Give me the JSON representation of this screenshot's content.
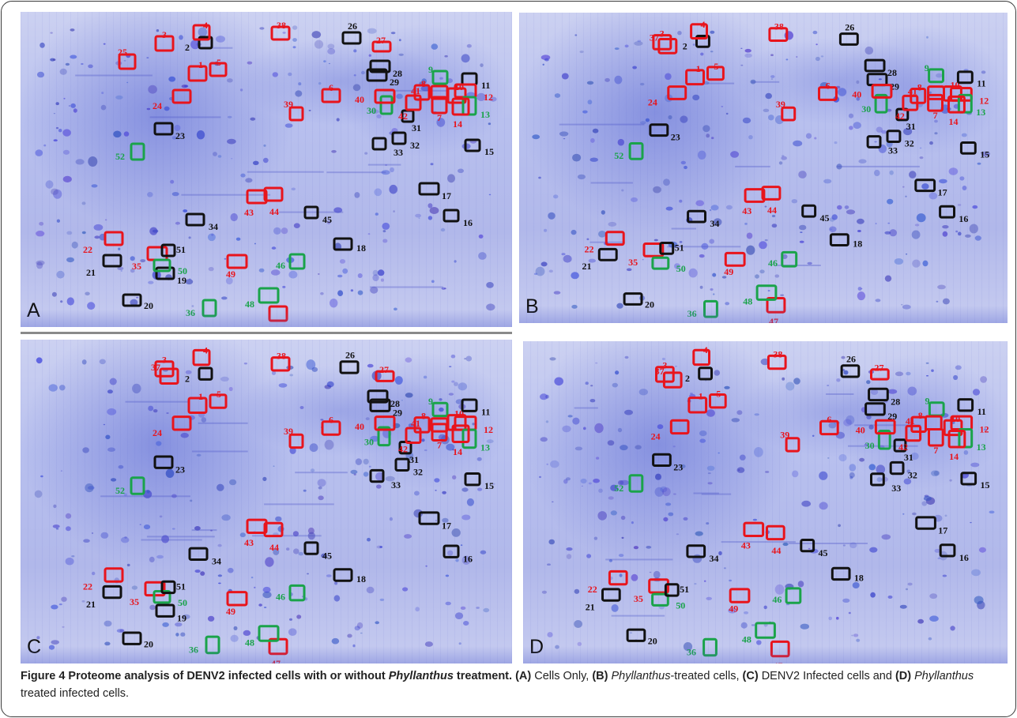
{
  "colors": {
    "red": "#e8141c",
    "black": "#111111",
    "green": "#1aa34a"
  },
  "panels": [
    {
      "letter": "A",
      "spots": [
        {
          "n": "1",
          "c": "red"
        },
        {
          "n": "2",
          "c": "black"
        },
        {
          "n": "3",
          "c": "red"
        },
        {
          "n": "4",
          "c": "red"
        },
        {
          "n": "5",
          "c": "red"
        },
        {
          "n": "6",
          "c": "red"
        },
        {
          "n": "7",
          "c": "red"
        },
        {
          "n": "8",
          "c": "red"
        },
        {
          "n": "9",
          "c": "green"
        },
        {
          "n": "10",
          "c": "red"
        },
        {
          "n": "11",
          "c": "black"
        },
        {
          "n": "12",
          "c": "red"
        },
        {
          "n": "13",
          "c": "green"
        },
        {
          "n": "14",
          "c": "red"
        },
        {
          "n": "15",
          "c": "black"
        },
        {
          "n": "16",
          "c": "black"
        },
        {
          "n": "17",
          "c": "black"
        },
        {
          "n": "18",
          "c": "black"
        },
        {
          "n": "19",
          "c": "black"
        },
        {
          "n": "20",
          "c": "black"
        },
        {
          "n": "21",
          "c": "black"
        },
        {
          "n": "22",
          "c": "red"
        },
        {
          "n": "23",
          "c": "black"
        },
        {
          "n": "24",
          "c": "red"
        },
        {
          "n": "25",
          "c": "red"
        },
        {
          "n": "26",
          "c": "black"
        },
        {
          "n": "27",
          "c": "red"
        },
        {
          "n": "28",
          "c": "black"
        },
        {
          "n": "29",
          "c": "black"
        },
        {
          "n": "30",
          "c": "green"
        },
        {
          "n": "31",
          "c": "black"
        },
        {
          "n": "32",
          "c": "black"
        },
        {
          "n": "33",
          "c": "black"
        },
        {
          "n": "34",
          "c": "black"
        },
        {
          "n": "35",
          "c": "red"
        },
        {
          "n": "36",
          "c": "green"
        },
        {
          "n": "38",
          "c": "red"
        },
        {
          "n": "39",
          "c": "red"
        },
        {
          "n": "40",
          "c": "red"
        },
        {
          "n": "41",
          "c": "red"
        },
        {
          "n": "42",
          "c": "red"
        },
        {
          "n": "43",
          "c": "red"
        },
        {
          "n": "44",
          "c": "red"
        },
        {
          "n": "45",
          "c": "black"
        },
        {
          "n": "46",
          "c": "green"
        },
        {
          "n": "47",
          "c": "red"
        },
        {
          "n": "48",
          "c": "green"
        },
        {
          "n": "49",
          "c": "red"
        },
        {
          "n": "50",
          "c": "green"
        },
        {
          "n": "51",
          "c": "black"
        },
        {
          "n": "52",
          "c": "green"
        }
      ]
    },
    {
      "letter": "B",
      "spots": [
        {
          "n": "1",
          "c": "red"
        },
        {
          "n": "2",
          "c": "black"
        },
        {
          "n": "3",
          "c": "red"
        },
        {
          "n": "4",
          "c": "red"
        },
        {
          "n": "5",
          "c": "red"
        },
        {
          "n": "6",
          "c": "red"
        },
        {
          "n": "7",
          "c": "red"
        },
        {
          "n": "8",
          "c": "red"
        },
        {
          "n": "9",
          "c": "green"
        },
        {
          "n": "10",
          "c": "red"
        },
        {
          "n": "11",
          "c": "black"
        },
        {
          "n": "12",
          "c": "red"
        },
        {
          "n": "13",
          "c": "green"
        },
        {
          "n": "14",
          "c": "red"
        },
        {
          "n": "15",
          "c": "black"
        },
        {
          "n": "16",
          "c": "black"
        },
        {
          "n": "17",
          "c": "black"
        },
        {
          "n": "18",
          "c": "black"
        },
        {
          "n": "20",
          "c": "black"
        },
        {
          "n": "21",
          "c": "black"
        },
        {
          "n": "22",
          "c": "red"
        },
        {
          "n": "23",
          "c": "black"
        },
        {
          "n": "24",
          "c": "red"
        },
        {
          "n": "26",
          "c": "black"
        },
        {
          "n": "28",
          "c": "black"
        },
        {
          "n": "29",
          "c": "black"
        },
        {
          "n": "30",
          "c": "green"
        },
        {
          "n": "31",
          "c": "black"
        },
        {
          "n": "32",
          "c": "black"
        },
        {
          "n": "33",
          "c": "black"
        },
        {
          "n": "34",
          "c": "black"
        },
        {
          "n": "35",
          "c": "red"
        },
        {
          "n": "36",
          "c": "green"
        },
        {
          "n": "37",
          "c": "red"
        },
        {
          "n": "38",
          "c": "red"
        },
        {
          "n": "39",
          "c": "red"
        },
        {
          "n": "40",
          "c": "red"
        },
        {
          "n": "41",
          "c": "red"
        },
        {
          "n": "42",
          "c": "red"
        },
        {
          "n": "43",
          "c": "red"
        },
        {
          "n": "44",
          "c": "red"
        },
        {
          "n": "45",
          "c": "black"
        },
        {
          "n": "46",
          "c": "green"
        },
        {
          "n": "47",
          "c": "red"
        },
        {
          "n": "48",
          "c": "green"
        },
        {
          "n": "49",
          "c": "red"
        },
        {
          "n": "50",
          "c": "green"
        },
        {
          "n": "51",
          "c": "black"
        },
        {
          "n": "52",
          "c": "green"
        }
      ]
    },
    {
      "letter": "C",
      "spots": [
        {
          "n": "1",
          "c": "red"
        },
        {
          "n": "2",
          "c": "black"
        },
        {
          "n": "3",
          "c": "red"
        },
        {
          "n": "4",
          "c": "red"
        },
        {
          "n": "5",
          "c": "red"
        },
        {
          "n": "6",
          "c": "red"
        },
        {
          "n": "7",
          "c": "red"
        },
        {
          "n": "8",
          "c": "red"
        },
        {
          "n": "9",
          "c": "green"
        },
        {
          "n": "10",
          "c": "red"
        },
        {
          "n": "11",
          "c": "black"
        },
        {
          "n": "12",
          "c": "red"
        },
        {
          "n": "13",
          "c": "green"
        },
        {
          "n": "14",
          "c": "red"
        },
        {
          "n": "15",
          "c": "black"
        },
        {
          "n": "16",
          "c": "black"
        },
        {
          "n": "17",
          "c": "black"
        },
        {
          "n": "18",
          "c": "black"
        },
        {
          "n": "19",
          "c": "black"
        },
        {
          "n": "20",
          "c": "black"
        },
        {
          "n": "21",
          "c": "black"
        },
        {
          "n": "22",
          "c": "red"
        },
        {
          "n": "23",
          "c": "black"
        },
        {
          "n": "24",
          "c": "red"
        },
        {
          "n": "26",
          "c": "black"
        },
        {
          "n": "27",
          "c": "red"
        },
        {
          "n": "28",
          "c": "black"
        },
        {
          "n": "29",
          "c": "black"
        },
        {
          "n": "30",
          "c": "green"
        },
        {
          "n": "31",
          "c": "black"
        },
        {
          "n": "32",
          "c": "black"
        },
        {
          "n": "33",
          "c": "black"
        },
        {
          "n": "34",
          "c": "black"
        },
        {
          "n": "35",
          "c": "red"
        },
        {
          "n": "36",
          "c": "green"
        },
        {
          "n": "37",
          "c": "red"
        },
        {
          "n": "38",
          "c": "red"
        },
        {
          "n": "39",
          "c": "red"
        },
        {
          "n": "40",
          "c": "red"
        },
        {
          "n": "41",
          "c": "red"
        },
        {
          "n": "42",
          "c": "red"
        },
        {
          "n": "43",
          "c": "red"
        },
        {
          "n": "44",
          "c": "red"
        },
        {
          "n": "45",
          "c": "black"
        },
        {
          "n": "46",
          "c": "green"
        },
        {
          "n": "47",
          "c": "red"
        },
        {
          "n": "48",
          "c": "green"
        },
        {
          "n": "49",
          "c": "red"
        },
        {
          "n": "50",
          "c": "green"
        },
        {
          "n": "51",
          "c": "black"
        },
        {
          "n": "52",
          "c": "green"
        }
      ]
    },
    {
      "letter": "D",
      "spots": [
        {
          "n": "1",
          "c": "red"
        },
        {
          "n": "2",
          "c": "black"
        },
        {
          "n": "3",
          "c": "red"
        },
        {
          "n": "4",
          "c": "red"
        },
        {
          "n": "5",
          "c": "red"
        },
        {
          "n": "6",
          "c": "red"
        },
        {
          "n": "7",
          "c": "red"
        },
        {
          "n": "8",
          "c": "red"
        },
        {
          "n": "9",
          "c": "green"
        },
        {
          "n": "10",
          "c": "red"
        },
        {
          "n": "11",
          "c": "black"
        },
        {
          "n": "12",
          "c": "red"
        },
        {
          "n": "13",
          "c": "green"
        },
        {
          "n": "14",
          "c": "red"
        },
        {
          "n": "15",
          "c": "black"
        },
        {
          "n": "16",
          "c": "black"
        },
        {
          "n": "17",
          "c": "black"
        },
        {
          "n": "18",
          "c": "black"
        },
        {
          "n": "20",
          "c": "black"
        },
        {
          "n": "21",
          "c": "black"
        },
        {
          "n": "22",
          "c": "red"
        },
        {
          "n": "23",
          "c": "black"
        },
        {
          "n": "24",
          "c": "red"
        },
        {
          "n": "26",
          "c": "black"
        },
        {
          "n": "27",
          "c": "red"
        },
        {
          "n": "28",
          "c": "black"
        },
        {
          "n": "29",
          "c": "black"
        },
        {
          "n": "30",
          "c": "green"
        },
        {
          "n": "31",
          "c": "black"
        },
        {
          "n": "32",
          "c": "black"
        },
        {
          "n": "33",
          "c": "black"
        },
        {
          "n": "34",
          "c": "black"
        },
        {
          "n": "35",
          "c": "red"
        },
        {
          "n": "36",
          "c": "green"
        },
        {
          "n": "37",
          "c": "red"
        },
        {
          "n": "38",
          "c": "red"
        },
        {
          "n": "39",
          "c": "red"
        },
        {
          "n": "40",
          "c": "red"
        },
        {
          "n": "41",
          "c": "red"
        },
        {
          "n": "42",
          "c": "red"
        },
        {
          "n": "43",
          "c": "red"
        },
        {
          "n": "44",
          "c": "red"
        },
        {
          "n": "45",
          "c": "black"
        },
        {
          "n": "46",
          "c": "green"
        },
        {
          "n": "47",
          "c": "red"
        },
        {
          "n": "48",
          "c": "green"
        },
        {
          "n": "49",
          "c": "red"
        },
        {
          "n": "50",
          "c": "green"
        },
        {
          "n": "51",
          "c": "black"
        },
        {
          "n": "52",
          "c": "green"
        }
      ]
    }
  ],
  "caption": {
    "label": "Figure 4",
    "t1": " Proteome analysis of DENV2 infected cells with or without ",
    "t2": "Phyllanthus",
    "t3": " treatment. ",
    "a": "(A)",
    "t4": " Cells Only, ",
    "b": "(B)",
    "t5": "Phyllanthus",
    "t6": "-treated cells, ",
    "c": "(C)",
    "t7": " DENV2 Infected cells and ",
    "d": "(D)",
    "t8": "Phyllanthus",
    "t9": " treated infected cells."
  }
}
